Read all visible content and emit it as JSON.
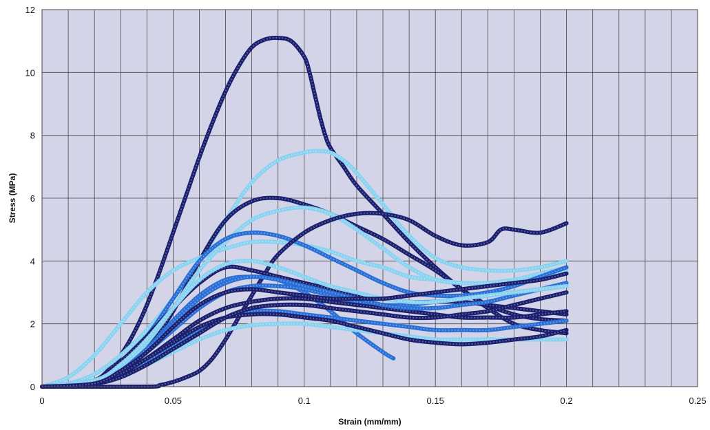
{
  "chart_data": {
    "type": "line",
    "title": "",
    "xlabel": "Strain (mm/mm)",
    "ylabel": "Stress (MPa)",
    "xlim": [
      0,
      0.25
    ],
    "ylim": [
      0,
      12
    ],
    "x_ticks": [
      "0",
      "0.05",
      "0.1",
      "0.15",
      "0.2",
      "0.25"
    ],
    "y_ticks": [
      "0",
      "2",
      "4",
      "6",
      "8",
      "10",
      "12"
    ],
    "grid": true,
    "legend": "none",
    "colors": {
      "plot_background": "#d4d4e8",
      "grid": "#444444",
      "light_blue": "#8ad3f0",
      "medium_blue": "#2a6fd6",
      "dark_navy": "#1a1f6e"
    },
    "series": [
      {
        "color": "#1a1f6e",
        "x": [
          0,
          0.01,
          0.02,
          0.025,
          0.03,
          0.035,
          0.04,
          0.045,
          0.05,
          0.055,
          0.06,
          0.065,
          0.07,
          0.075,
          0.08,
          0.085,
          0.09,
          0.095,
          0.1,
          0.102,
          0.104,
          0.106,
          0.108,
          0.11,
          0.115,
          0.12,
          0.13,
          0.14,
          0.15,
          0.16,
          0.17,
          0.18,
          0.19,
          0.2
        ],
        "y": [
          0,
          0.05,
          0.2,
          0.5,
          1.0,
          1.7,
          2.6,
          3.7,
          4.9,
          6.1,
          7.3,
          8.4,
          9.4,
          10.2,
          10.8,
          11.05,
          11.1,
          11.0,
          10.5,
          10.0,
          9.3,
          8.6,
          8.0,
          7.6,
          7.0,
          6.4,
          5.5,
          4.6,
          3.8,
          3.1,
          2.6,
          2.3,
          2.15,
          2.1
        ]
      },
      {
        "color": "#8ad3f0",
        "x": [
          0,
          0.01,
          0.02,
          0.03,
          0.04,
          0.05,
          0.06,
          0.07,
          0.08,
          0.09,
          0.1,
          0.105,
          0.11,
          0.115,
          0.12,
          0.13,
          0.14,
          0.15,
          0.16,
          0.17,
          0.18,
          0.19,
          0.2
        ],
        "y": [
          0,
          0.1,
          0.4,
          1.0,
          1.8,
          2.8,
          4.0,
          5.3,
          6.5,
          7.2,
          7.45,
          7.5,
          7.45,
          7.2,
          6.8,
          5.8,
          4.8,
          4.1,
          3.8,
          3.7,
          3.7,
          3.8,
          4.0
        ]
      },
      {
        "color": "#1a1f6e",
        "x": [
          0,
          0.02,
          0.03,
          0.04,
          0.05,
          0.06,
          0.07,
          0.08,
          0.09,
          0.1,
          0.11,
          0.12,
          0.13,
          0.14,
          0.15,
          0.16,
          0.17,
          0.18,
          0.19,
          0.2
        ],
        "y": [
          0,
          0.1,
          0.4,
          1.2,
          2.4,
          4.0,
          5.3,
          5.9,
          6.0,
          5.8,
          5.5,
          5.1,
          4.7,
          4.2,
          3.7,
          3.1,
          2.5,
          2.0,
          1.8,
          1.7
        ]
      },
      {
        "color": "#8ad3f0",
        "x": [
          0,
          0.01,
          0.02,
          0.03,
          0.04,
          0.05,
          0.06,
          0.07,
          0.08,
          0.09,
          0.1,
          0.11,
          0.12,
          0.13,
          0.14,
          0.15,
          0.16,
          0.17,
          0.18,
          0.19,
          0.2
        ],
        "y": [
          0,
          0.3,
          1.0,
          2.0,
          3.0,
          3.7,
          4.1,
          4.4,
          4.6,
          4.6,
          4.5,
          4.3,
          4.0,
          3.8,
          3.5,
          3.4,
          3.3,
          3.3,
          3.4,
          3.5,
          3.7
        ]
      },
      {
        "color": "#8ad3f0",
        "x": [
          0,
          0.02,
          0.03,
          0.04,
          0.05,
          0.06,
          0.07,
          0.08,
          0.09,
          0.1,
          0.11,
          0.12,
          0.13,
          0.14,
          0.15,
          0.16,
          0.17,
          0.18,
          0.19,
          0.2
        ],
        "y": [
          0,
          0.2,
          0.6,
          1.4,
          2.5,
          3.7,
          4.6,
          5.3,
          5.6,
          5.7,
          5.5,
          5.0,
          4.4,
          3.8,
          3.4,
          3.3,
          3.3,
          3.4,
          3.6,
          3.8
        ]
      },
      {
        "color": "#2a6fd6",
        "x": [
          0,
          0.02,
          0.03,
          0.04,
          0.05,
          0.06,
          0.07,
          0.08,
          0.09,
          0.1,
          0.11,
          0.12,
          0.13,
          0.14,
          0.15,
          0.16,
          0.17,
          0.18,
          0.19,
          0.2
        ],
        "y": [
          0,
          0.2,
          0.7,
          1.6,
          2.8,
          4.0,
          4.7,
          4.9,
          4.8,
          4.5,
          4.1,
          3.7,
          3.3,
          3.0,
          2.9,
          2.9,
          3.0,
          3.2,
          3.5,
          3.8
        ]
      },
      {
        "color": "#1a1f6e",
        "x": [
          0,
          0.04,
          0.045,
          0.05,
          0.055,
          0.06,
          0.065,
          0.07,
          0.075,
          0.08,
          0.085,
          0.09,
          0.1,
          0.11,
          0.12,
          0.13,
          0.14,
          0.15,
          0.16,
          0.17,
          0.175,
          0.18,
          0.19,
          0.2
        ],
        "y": [
          0,
          0,
          0.05,
          0.15,
          0.3,
          0.5,
          0.9,
          1.5,
          2.2,
          2.9,
          3.6,
          4.2,
          4.9,
          5.3,
          5.5,
          5.5,
          5.3,
          4.8,
          4.5,
          4.6,
          5.0,
          5.0,
          4.9,
          5.2
        ]
      },
      {
        "color": "#2a6fd6",
        "x": [
          0,
          0.02,
          0.03,
          0.04,
          0.05,
          0.06,
          0.07,
          0.08,
          0.09,
          0.1,
          0.11,
          0.12,
          0.13,
          0.134
        ],
        "y": [
          0,
          0.1,
          0.5,
          1.2,
          2.1,
          2.9,
          3.4,
          3.5,
          3.4,
          3.0,
          2.4,
          1.7,
          1.1,
          0.9
        ]
      },
      {
        "color": "#1a1f6e",
        "x": [
          0,
          0.02,
          0.03,
          0.04,
          0.05,
          0.06,
          0.07,
          0.08,
          0.09,
          0.1,
          0.11,
          0.12,
          0.13,
          0.14,
          0.15,
          0.16,
          0.17,
          0.18,
          0.19,
          0.2
        ],
        "y": [
          0,
          0.2,
          0.8,
          1.6,
          2.5,
          3.3,
          3.8,
          3.7,
          3.5,
          3.3,
          3.1,
          2.9,
          2.8,
          2.7,
          2.7,
          2.7,
          2.6,
          2.5,
          2.4,
          2.3
        ]
      },
      {
        "color": "#2a6fd6",
        "x": [
          0,
          0.02,
          0.03,
          0.04,
          0.05,
          0.06,
          0.07,
          0.08,
          0.09,
          0.1,
          0.11,
          0.12,
          0.13,
          0.14,
          0.15,
          0.16,
          0.17,
          0.18,
          0.19,
          0.2
        ],
        "y": [
          0,
          0.1,
          0.5,
          1.1,
          1.8,
          2.5,
          3.0,
          3.2,
          3.2,
          3.1,
          2.9,
          2.7,
          2.6,
          2.6,
          2.7,
          2.8,
          2.9,
          3.0,
          3.1,
          3.2
        ]
      },
      {
        "color": "#1a1f6e",
        "x": [
          0,
          0.02,
          0.03,
          0.04,
          0.05,
          0.06,
          0.07,
          0.08,
          0.09,
          0.1,
          0.11,
          0.12,
          0.13,
          0.14,
          0.15,
          0.16,
          0.17,
          0.18,
          0.19,
          0.2
        ],
        "y": [
          0,
          0.1,
          0.4,
          0.9,
          1.5,
          2.1,
          2.5,
          2.7,
          2.8,
          2.8,
          2.7,
          2.6,
          2.5,
          2.4,
          2.3,
          2.2,
          2.2,
          2.2,
          2.3,
          2.4
        ]
      },
      {
        "color": "#2a6fd6",
        "x": [
          0,
          0.02,
          0.03,
          0.04,
          0.05,
          0.06,
          0.07,
          0.08,
          0.09,
          0.1,
          0.11,
          0.12,
          0.13,
          0.14,
          0.15,
          0.16,
          0.17,
          0.18,
          0.19,
          0.2
        ],
        "y": [
          0,
          0.1,
          0.4,
          0.8,
          1.3,
          1.8,
          2.2,
          2.4,
          2.4,
          2.3,
          2.2,
          2.1,
          2.0,
          1.9,
          1.8,
          1.8,
          1.8,
          1.9,
          2.0,
          2.1
        ]
      },
      {
        "color": "#8ad3f0",
        "x": [
          0,
          0.02,
          0.03,
          0.04,
          0.05,
          0.06,
          0.07,
          0.08,
          0.09,
          0.1,
          0.11,
          0.12,
          0.13,
          0.14,
          0.15,
          0.16,
          0.17,
          0.18,
          0.19,
          0.2
        ],
        "y": [
          0,
          0.1,
          0.3,
          0.7,
          1.1,
          1.5,
          1.8,
          1.95,
          2.0,
          2.0,
          1.9,
          1.8,
          1.7,
          1.6,
          1.5,
          1.5,
          1.5,
          1.5,
          1.5,
          1.5
        ]
      },
      {
        "color": "#1a1f6e",
        "x": [
          0,
          0.02,
          0.03,
          0.04,
          0.05,
          0.06,
          0.07,
          0.08,
          0.09,
          0.1,
          0.11,
          0.12,
          0.13,
          0.14,
          0.15,
          0.16,
          0.17,
          0.18,
          0.19,
          0.2
        ],
        "y": [
          0,
          0.1,
          0.4,
          0.9,
          1.4,
          1.9,
          2.2,
          2.3,
          2.3,
          2.2,
          2.1,
          1.9,
          1.7,
          1.5,
          1.4,
          1.35,
          1.4,
          1.5,
          1.6,
          1.8
        ]
      },
      {
        "color": "#2a6fd6",
        "x": [
          0,
          0.02,
          0.03,
          0.04,
          0.05,
          0.06,
          0.07,
          0.08,
          0.09,
          0.1,
          0.11,
          0.12,
          0.13,
          0.14,
          0.15,
          0.16,
          0.17,
          0.18,
          0.19,
          0.2
        ],
        "y": [
          0,
          0.1,
          0.5,
          1.2,
          2.0,
          2.8,
          3.3,
          3.5,
          3.4,
          3.2,
          3.0,
          2.8,
          2.6,
          2.5,
          2.5,
          2.6,
          2.7,
          2.9,
          3.1,
          3.3
        ]
      },
      {
        "color": "#1a1f6e",
        "x": [
          0,
          0.02,
          0.03,
          0.04,
          0.05,
          0.06,
          0.07,
          0.08,
          0.09,
          0.1,
          0.11,
          0.12,
          0.13,
          0.14,
          0.15,
          0.16,
          0.17,
          0.18,
          0.19,
          0.2
        ],
        "y": [
          0,
          0.1,
          0.3,
          0.7,
          1.2,
          1.7,
          2.2,
          2.5,
          2.6,
          2.6,
          2.5,
          2.4,
          2.3,
          2.2,
          2.2,
          2.3,
          2.4,
          2.6,
          2.8,
          3.0
        ]
      },
      {
        "color": "#8ad3f0",
        "x": [
          0,
          0.02,
          0.03,
          0.04,
          0.05,
          0.06,
          0.07,
          0.08,
          0.09,
          0.1,
          0.11,
          0.12,
          0.13,
          0.14,
          0.15,
          0.16,
          0.17,
          0.18,
          0.19,
          0.2
        ],
        "y": [
          0,
          0.2,
          0.7,
          1.5,
          2.5,
          3.4,
          3.9,
          4.0,
          3.8,
          3.5,
          3.2,
          3.0,
          2.8,
          2.7,
          2.7,
          2.8,
          2.9,
          3.0,
          3.1,
          3.2
        ]
      },
      {
        "color": "#1a1f6e",
        "x": [
          0,
          0.02,
          0.03,
          0.04,
          0.05,
          0.06,
          0.07,
          0.08,
          0.09,
          0.1,
          0.11,
          0.12,
          0.13,
          0.14,
          0.15,
          0.16,
          0.17,
          0.18,
          0.19,
          0.2
        ],
        "y": [
          0,
          0.1,
          0.5,
          1.1,
          1.9,
          2.6,
          3.0,
          3.1,
          3.0,
          2.9,
          2.8,
          2.8,
          2.8,
          2.9,
          3.0,
          3.1,
          3.2,
          3.3,
          3.4,
          3.6
        ]
      }
    ]
  }
}
